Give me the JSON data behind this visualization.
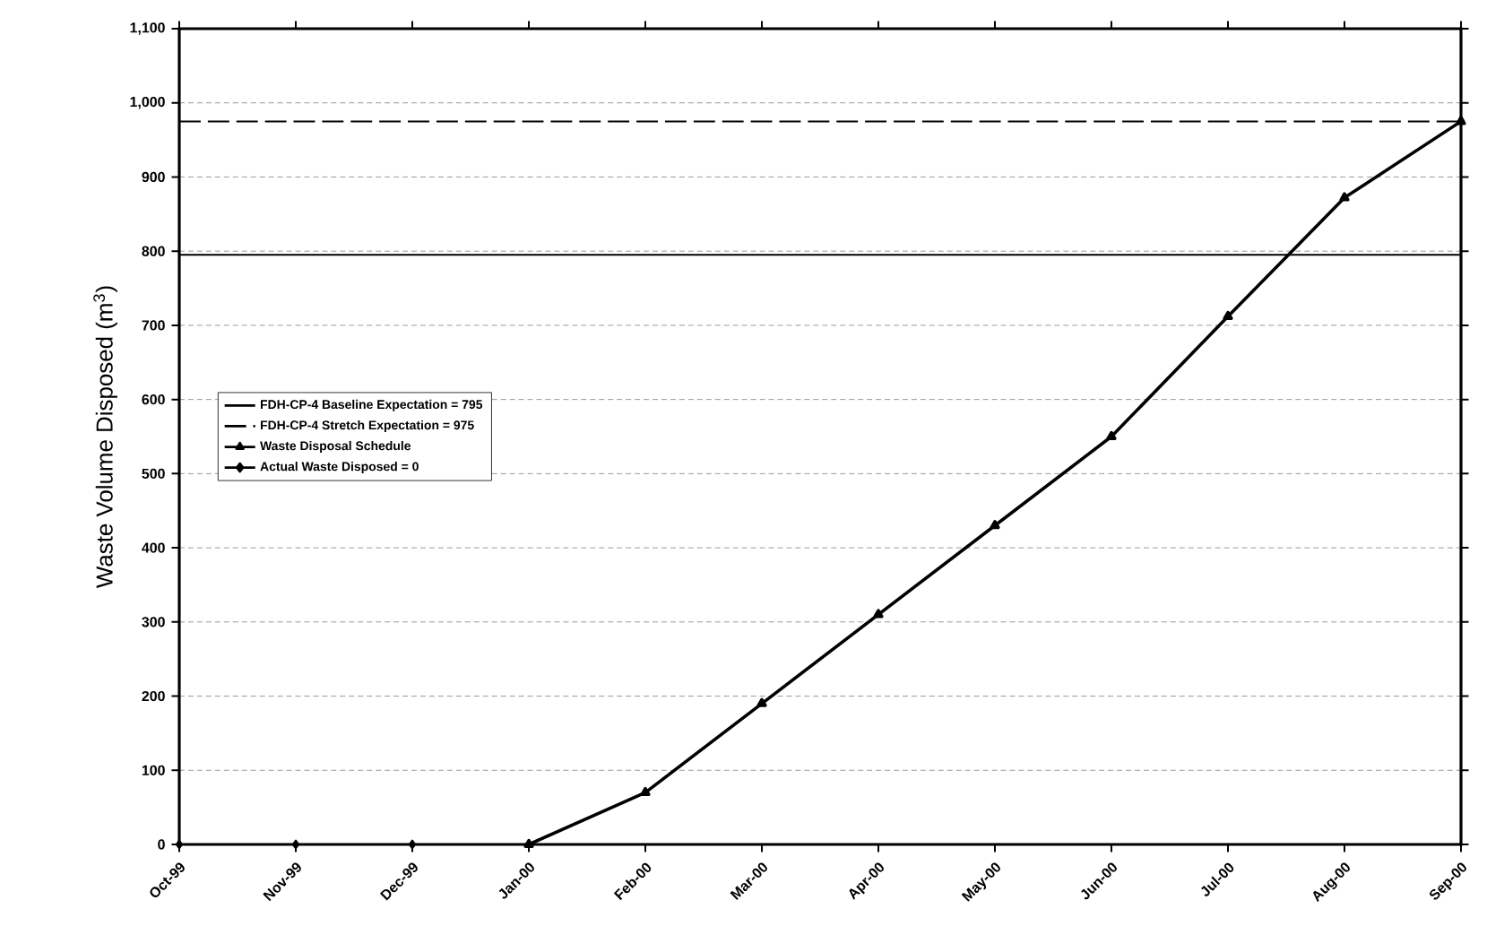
{
  "chart_data": {
    "type": "line",
    "ylabel": "Waste Volume Disposed (m$^{3}$)",
    "categories": [
      "Oct-99",
      "Nov-99",
      "Dec-99",
      "Jan-00",
      "Feb-00",
      "Mar-00",
      "Apr-00",
      "May-00",
      "Jun-00",
      "Jul-00",
      "Aug-00",
      "Sep-00"
    ],
    "ylim": [
      0,
      1100
    ],
    "yticks": [
      0,
      100,
      200,
      300,
      400,
      500,
      600,
      700,
      800,
      900,
      {
        "value": 1000,
        "label": "1,000"
      },
      {
        "value": 1100,
        "label": "1,100"
      }
    ],
    "grid": "y",
    "legend": "left",
    "series": [
      {
        "name": "FDH-CP-4 Baseline Expectation = 795",
        "color": "#000000",
        "line_style": "solid",
        "marker": "none",
        "values": [
          795,
          795,
          795,
          795,
          795,
          795,
          795,
          795,
          795,
          795,
          795,
          795
        ]
      },
      {
        "name": "FDH-CP-4 Stretch Expectation = 975",
        "color": "#000000",
        "line_style": "dashed",
        "marker": "none",
        "values": [
          975,
          975,
          975,
          975,
          975,
          975,
          975,
          975,
          975,
          975,
          975,
          975
        ]
      },
      {
        "name": "Waste Disposal Schedule",
        "color": "#000000",
        "line_style": "solid",
        "marker": "triangle",
        "values": [
          null,
          null,
          null,
          0,
          70,
          190,
          310,
          430,
          550,
          712,
          872,
          975
        ]
      },
      {
        "name": "Actual Waste Disposed = 0",
        "color": "#000000",
        "line_style": "solid",
        "marker": "diamond",
        "values": [
          0,
          0,
          0,
          null,
          null,
          null,
          null,
          null,
          null,
          null,
          null,
          null
        ]
      }
    ]
  }
}
